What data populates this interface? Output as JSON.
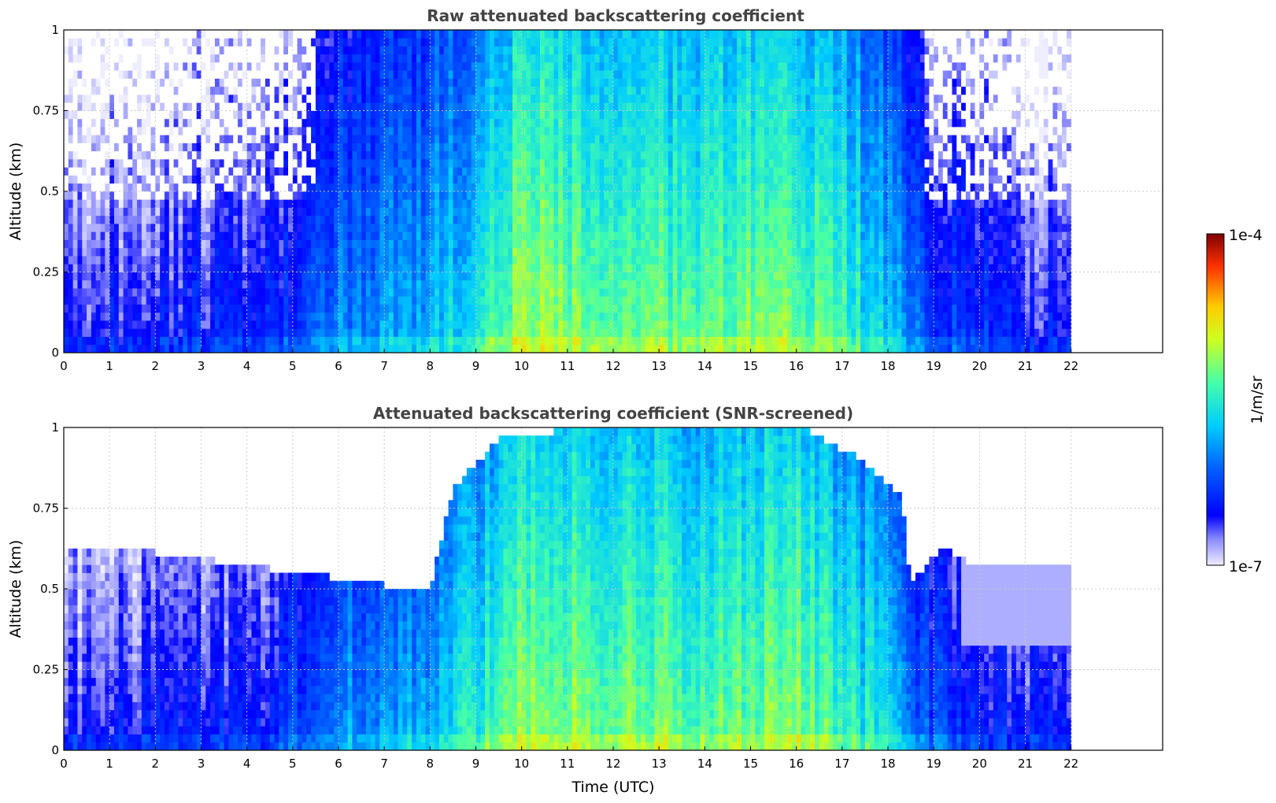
{
  "chart_data": [
    {
      "type": "heatmap",
      "title": "Raw attenuated backscattering coefficient",
      "xlabel": "",
      "ylabel": "Altitude (km)",
      "xlim": [
        0,
        24
      ],
      "ylim": [
        0,
        1
      ],
      "x_ticks": [
        "0",
        "1",
        "2",
        "3",
        "4",
        "5",
        "6",
        "7",
        "8",
        "9",
        "10",
        "11",
        "12",
        "13",
        "14",
        "15",
        "16",
        "17",
        "18",
        "19",
        "20",
        "21",
        "22"
      ],
      "y_ticks": [
        "0",
        "0.25",
        "0.5",
        "0.75",
        "1"
      ],
      "grid": true,
      "data_extent_hours": [
        0,
        22
      ],
      "intensity_profile": [
        {
          "t": 0,
          "level": 0.15
        },
        {
          "t": 4.5,
          "level": 0.2
        },
        {
          "t": 6,
          "level": 0.35
        },
        {
          "t": 8,
          "level": 0.4
        },
        {
          "t": 9,
          "level": 0.5
        },
        {
          "t": 10,
          "level": 0.65
        },
        {
          "t": 12,
          "level": 0.6
        },
        {
          "t": 14,
          "level": 0.58
        },
        {
          "t": 16,
          "level": 0.62
        },
        {
          "t": 18,
          "level": 0.45
        },
        {
          "t": 19,
          "level": 0.25
        },
        {
          "t": 22,
          "level": 0.15
        }
      ]
    },
    {
      "type": "heatmap",
      "title": "Attenuated backscattering coefficient (SNR-screened)",
      "xlabel": "Time (UTC)",
      "ylabel": "Altitude (km)",
      "xlim": [
        0,
        24
      ],
      "ylim": [
        0,
        1
      ],
      "x_ticks": [
        "0",
        "1",
        "2",
        "3",
        "4",
        "5",
        "6",
        "7",
        "8",
        "9",
        "10",
        "11",
        "12",
        "13",
        "14",
        "15",
        "16",
        "17",
        "18",
        "19",
        "20",
        "21",
        "22"
      ],
      "y_ticks": [
        "0",
        "0.25",
        "0.5",
        "0.75",
        "1"
      ],
      "grid": true,
      "data_extent_hours": [
        0,
        22
      ],
      "screened_top_km": [
        {
          "t": 0,
          "h": 0.62
        },
        {
          "t": 2,
          "h": 0.6
        },
        {
          "t": 4,
          "h": 0.56
        },
        {
          "t": 6,
          "h": 0.52
        },
        {
          "t": 7,
          "h": 0.5
        },
        {
          "t": 8,
          "h": 0.48
        },
        {
          "t": 8.5,
          "h": 0.8
        },
        {
          "t": 9.5,
          "h": 0.95
        },
        {
          "t": 12,
          "h": 1.0
        },
        {
          "t": 16,
          "h": 1.0
        },
        {
          "t": 17.5,
          "h": 0.88
        },
        {
          "t": 18.3,
          "h": 0.78
        },
        {
          "t": 18.5,
          "h": 0.5
        },
        {
          "t": 19.2,
          "h": 0.62
        },
        {
          "t": 20,
          "h": 0.55
        },
        {
          "t": 22,
          "h": 0.55
        }
      ]
    }
  ],
  "colorbar": {
    "label": "1/m/sr",
    "max_label": "1e-4",
    "min_label": "1e-7",
    "colormap": "jet"
  },
  "colors": {
    "low": "#eeeeff",
    "dark_blue": "#0000dd",
    "blue": "#1030ff",
    "cyan": "#22ccee",
    "green": "#66e09a",
    "yellow": "#ffee00",
    "red": "#ff2200",
    "dark_red": "#7f0000"
  }
}
